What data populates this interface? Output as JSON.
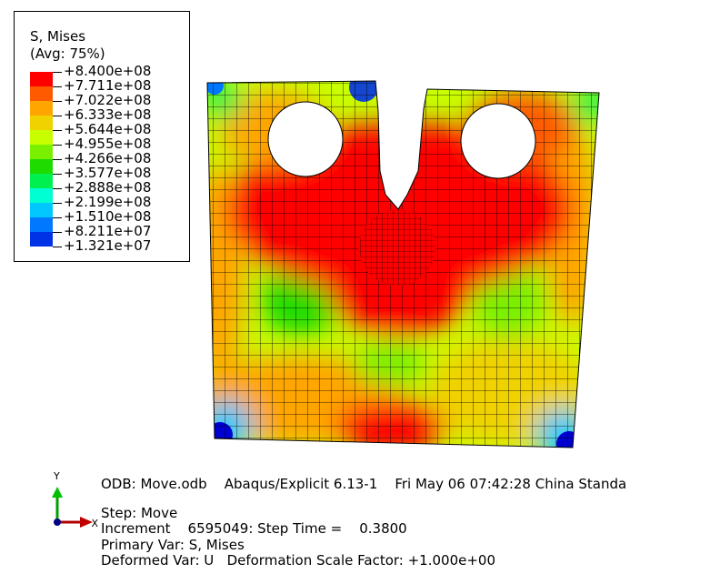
{
  "legend": {
    "title": "S, Mises",
    "subtitle": "(Avg: 75%)",
    "levels": [
      {
        "label": "+8.400e+08",
        "color": "#ff0000"
      },
      {
        "label": "+7.711e+08",
        "color": "#ff5a00"
      },
      {
        "label": "+7.022e+08",
        "color": "#ffa500"
      },
      {
        "label": "+6.333e+08",
        "color": "#f0d200"
      },
      {
        "label": "+5.644e+08",
        "color": "#c8ff00"
      },
      {
        "label": "+4.955e+08",
        "color": "#78f000"
      },
      {
        "label": "+4.266e+08",
        "color": "#1edc00"
      },
      {
        "label": "+3.577e+08",
        "color": "#00f050"
      },
      {
        "label": "+2.888e+08",
        "color": "#00ffd2"
      },
      {
        "label": "+2.199e+08",
        "color": "#00c8ff"
      },
      {
        "label": "+1.510e+08",
        "color": "#0078ff"
      },
      {
        "label": "+8.211e+07",
        "color": "#0032e6"
      },
      {
        "label": "+1.321e+07",
        "color": "#0000d2"
      }
    ]
  },
  "triad": {
    "y_label": "Y",
    "x_label": "X"
  },
  "info": {
    "line1": "ODB: Move.odb    Abaqus/Explicit 6.13-1    Fri May 06 07:42:28 China Standa",
    "line2": "Step: Move",
    "line3": "Increment    6595049: Step Time =    0.3800",
    "line4": "Primary Var: S, Mises",
    "line5": "Deformed Var: U   Deformation Scale Factor: +1.000e+00"
  }
}
